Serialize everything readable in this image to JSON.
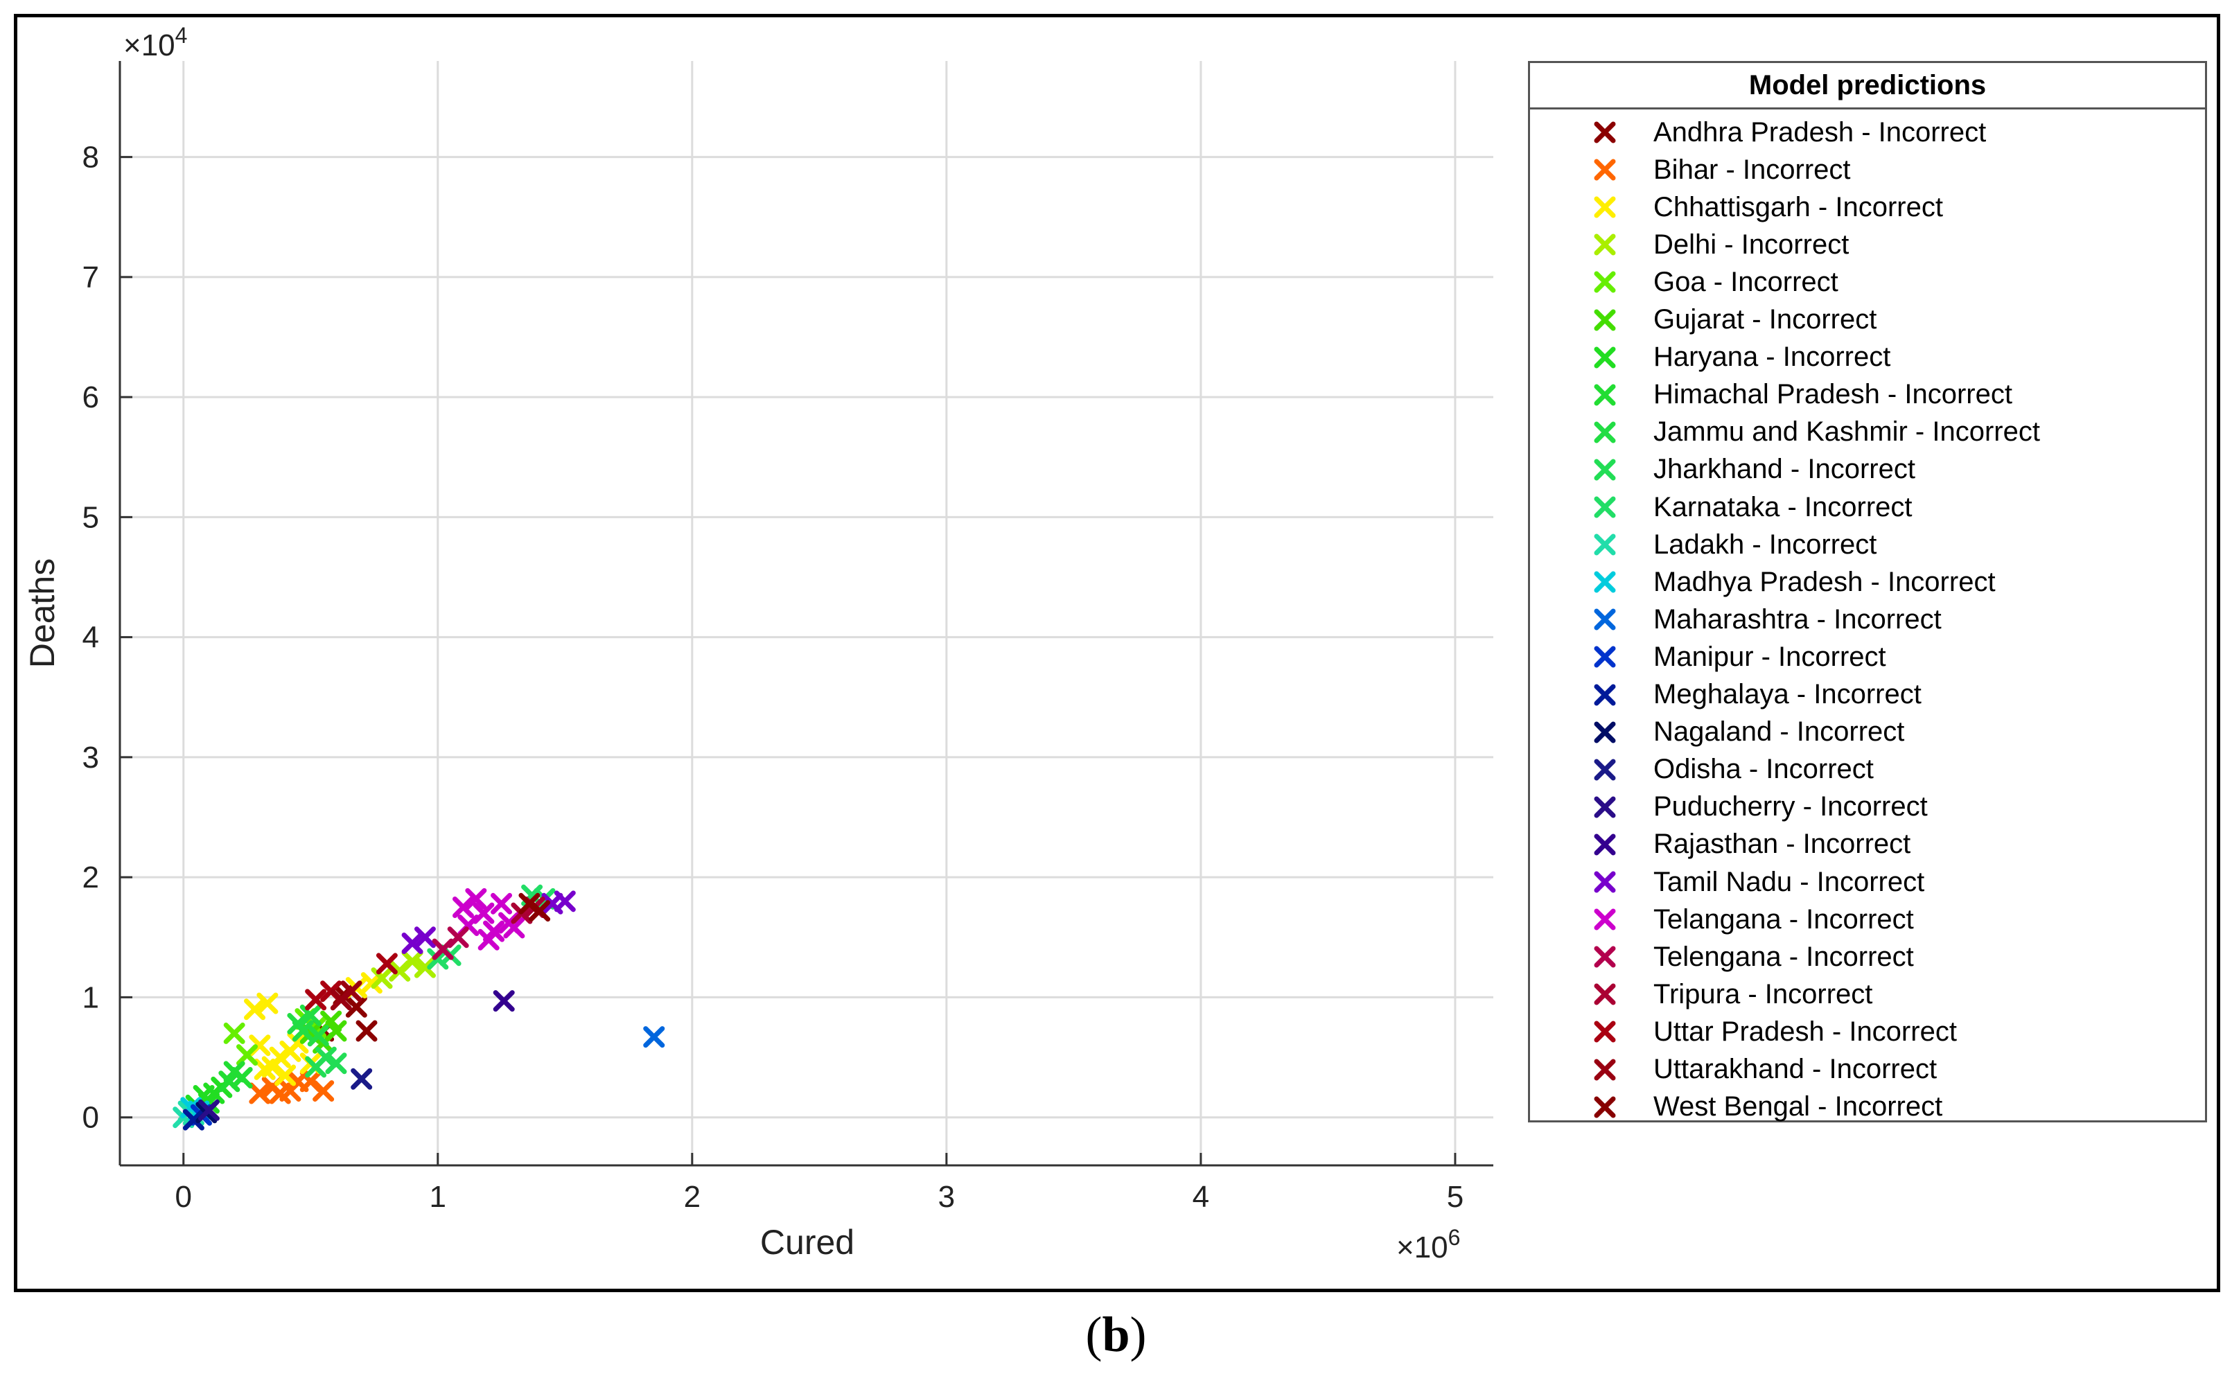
{
  "chart_data": {
    "type": "scatter",
    "xlabel": "Cured",
    "ylabel": "Deaths",
    "x_exponent_label": "×10",
    "x_exponent_power": "6",
    "y_exponent_label": "×10",
    "y_exponent_power": "4",
    "xlim": [
      -0.25,
      5.15
    ],
    "ylim": [
      -0.4,
      8.8
    ],
    "x_ticks": [
      0,
      1,
      2,
      3,
      4,
      5
    ],
    "x_tick_labels": [
      "0",
      "1",
      "2",
      "3",
      "4",
      "5"
    ],
    "y_ticks": [
      0,
      1,
      2,
      3,
      4,
      5,
      6,
      7,
      8
    ],
    "y_tick_labels": [
      "0",
      "1",
      "2",
      "3",
      "4",
      "5",
      "6",
      "7",
      "8"
    ],
    "grid": true,
    "legend_title": "Model predictions",
    "legend_position": "right",
    "marker": "x",
    "series": [
      {
        "name": "Andhra Pradesh - Incorrect",
        "color": "#8b0000",
        "points": [
          [
            0.55,
            0.72
          ],
          [
            0.68,
            0.92
          ],
          [
            0.63,
            1.02
          ],
          [
            0.72,
            0.72
          ]
        ]
      },
      {
        "name": "Bihar - Incorrect",
        "color": "#ff6600",
        "points": [
          [
            0.3,
            0.2
          ],
          [
            0.35,
            0.25
          ],
          [
            0.42,
            0.22
          ],
          [
            0.5,
            0.3
          ],
          [
            0.55,
            0.22
          ],
          [
            0.45,
            0.3
          ],
          [
            0.38,
            0.2
          ]
        ]
      },
      {
        "name": "Chhattisgarh - Incorrect",
        "color": "#ffee00",
        "points": [
          [
            0.28,
            0.9
          ],
          [
            0.33,
            0.95
          ],
          [
            0.3,
            0.6
          ],
          [
            0.38,
            0.5
          ],
          [
            0.42,
            0.55
          ],
          [
            0.35,
            0.42
          ],
          [
            0.45,
            0.62
          ],
          [
            0.4,
            0.35
          ],
          [
            0.5,
            0.45
          ],
          [
            0.32,
            0.4
          ],
          [
            0.68,
            1.08
          ],
          [
            0.74,
            1.12
          ]
        ]
      },
      {
        "name": "Delhi - Incorrect",
        "color": "#aaee00",
        "points": [
          [
            0.85,
            1.22
          ],
          [
            0.9,
            1.3
          ],
          [
            0.95,
            1.25
          ],
          [
            0.78,
            1.16
          ]
        ]
      },
      {
        "name": "Goa - Incorrect",
        "color": "#66ee00",
        "points": [
          [
            0.2,
            0.7
          ],
          [
            0.25,
            0.52
          ],
          [
            0.48,
            0.82
          ],
          [
            0.52,
            0.75
          ]
        ]
      },
      {
        "name": "Gujarat - Incorrect",
        "color": "#44dd00",
        "points": [
          [
            0.5,
            0.7
          ],
          [
            0.55,
            0.62
          ],
          [
            0.6,
            0.72
          ],
          [
            0.58,
            0.8
          ]
        ]
      },
      {
        "name": "Haryana - Incorrect",
        "color": "#22dd22",
        "points": [
          [
            0.05,
            0.1
          ],
          [
            0.08,
            0.18
          ],
          [
            0.1,
            0.12
          ],
          [
            0.12,
            0.2
          ],
          [
            0.15,
            0.25
          ]
        ]
      },
      {
        "name": "Himachal Pradesh - Incorrect",
        "color": "#22dd33",
        "points": [
          [
            0.18,
            0.3
          ],
          [
            0.2,
            0.38
          ],
          [
            0.23,
            0.33
          ]
        ]
      },
      {
        "name": "Jammu and Kashmir - Incorrect",
        "color": "#22dd44",
        "points": [
          [
            0.45,
            0.78
          ],
          [
            0.5,
            0.85
          ],
          [
            0.53,
            0.68
          ],
          [
            0.47,
            0.72
          ]
        ]
      },
      {
        "name": "Jharkhand - Incorrect",
        "color": "#22dd55",
        "points": [
          [
            0.52,
            0.42
          ],
          [
            0.56,
            0.5
          ],
          [
            0.6,
            0.45
          ]
        ]
      },
      {
        "name": "Karnataka - Incorrect",
        "color": "#22dd66",
        "points": [
          [
            1.0,
            1.32
          ],
          [
            1.05,
            1.35
          ],
          [
            1.37,
            1.85
          ],
          [
            1.42,
            1.82
          ]
        ]
      },
      {
        "name": "Ladakh - Incorrect",
        "color": "#22ddaa",
        "points": [
          [
            0.0,
            0.0
          ],
          [
            0.02,
            0.05
          ],
          [
            0.04,
            0.02
          ]
        ]
      },
      {
        "name": "Madhya Pradesh - Incorrect",
        "color": "#00ccdd",
        "points": [
          [
            0.03,
            0.08
          ],
          [
            0.06,
            0.05
          ]
        ]
      },
      {
        "name": "Maharashtra - Incorrect",
        "color": "#0066dd",
        "points": [
          [
            1.85,
            0.67
          ]
        ]
      },
      {
        "name": "Manipur - Incorrect",
        "color": "#0033cc",
        "points": [
          [
            0.07,
            0.02
          ]
        ]
      },
      {
        "name": "Meghalaya - Incorrect",
        "color": "#001a99",
        "points": [
          [
            0.04,
            -0.02
          ]
        ]
      },
      {
        "name": "Nagaland - Incorrect",
        "color": "#000d66",
        "points": [
          [
            0.09,
            0.04
          ]
        ]
      },
      {
        "name": "Odisha - Incorrect",
        "color": "#1a1a88",
        "points": [
          [
            0.7,
            0.32
          ]
        ]
      },
      {
        "name": "Puducherry - Incorrect",
        "color": "#2a0d88",
        "points": [
          [
            0.1,
            0.06
          ]
        ]
      },
      {
        "name": "Rajasthan - Incorrect",
        "color": "#33008f",
        "points": [
          [
            1.26,
            0.97
          ]
        ]
      },
      {
        "name": "Tamil Nadu - Incorrect",
        "color": "#7700cc",
        "points": [
          [
            0.9,
            1.45
          ],
          [
            0.95,
            1.5
          ],
          [
            1.5,
            1.8
          ],
          [
            1.45,
            1.78
          ]
        ]
      },
      {
        "name": "Telangana - Incorrect",
        "color": "#cc00cc",
        "points": [
          [
            1.12,
            1.6
          ],
          [
            1.18,
            1.7
          ],
          [
            1.15,
            1.82
          ],
          [
            1.22,
            1.55
          ],
          [
            1.28,
            1.62
          ],
          [
            1.2,
            1.48
          ],
          [
            1.1,
            1.75
          ],
          [
            1.25,
            1.78
          ],
          [
            1.3,
            1.58
          ]
        ]
      },
      {
        "name": "Telengana - Incorrect",
        "color": "#b3004d",
        "points": [
          [
            1.02,
            1.4
          ],
          [
            1.08,
            1.5
          ]
        ]
      },
      {
        "name": "Tripura - Incorrect",
        "color": "#aa0033",
        "points": [
          [
            1.33,
            1.7
          ],
          [
            1.38,
            1.75
          ]
        ]
      },
      {
        "name": "Uttar Pradesh - Incorrect",
        "color": "#aa0011",
        "points": [
          [
            0.52,
            0.98
          ],
          [
            0.58,
            1.05
          ],
          [
            0.8,
            1.28
          ]
        ]
      },
      {
        "name": "Uttarakhand - Incorrect",
        "color": "#990011",
        "points": [
          [
            0.62,
            0.98
          ],
          [
            0.66,
            1.05
          ]
        ]
      },
      {
        "name": "West Bengal - Incorrect",
        "color": "#880000",
        "points": [
          [
            1.4,
            1.72
          ],
          [
            1.36,
            1.78
          ]
        ]
      }
    ]
  },
  "caption": {
    "open": "(",
    "letter": "b",
    "close": ")"
  }
}
